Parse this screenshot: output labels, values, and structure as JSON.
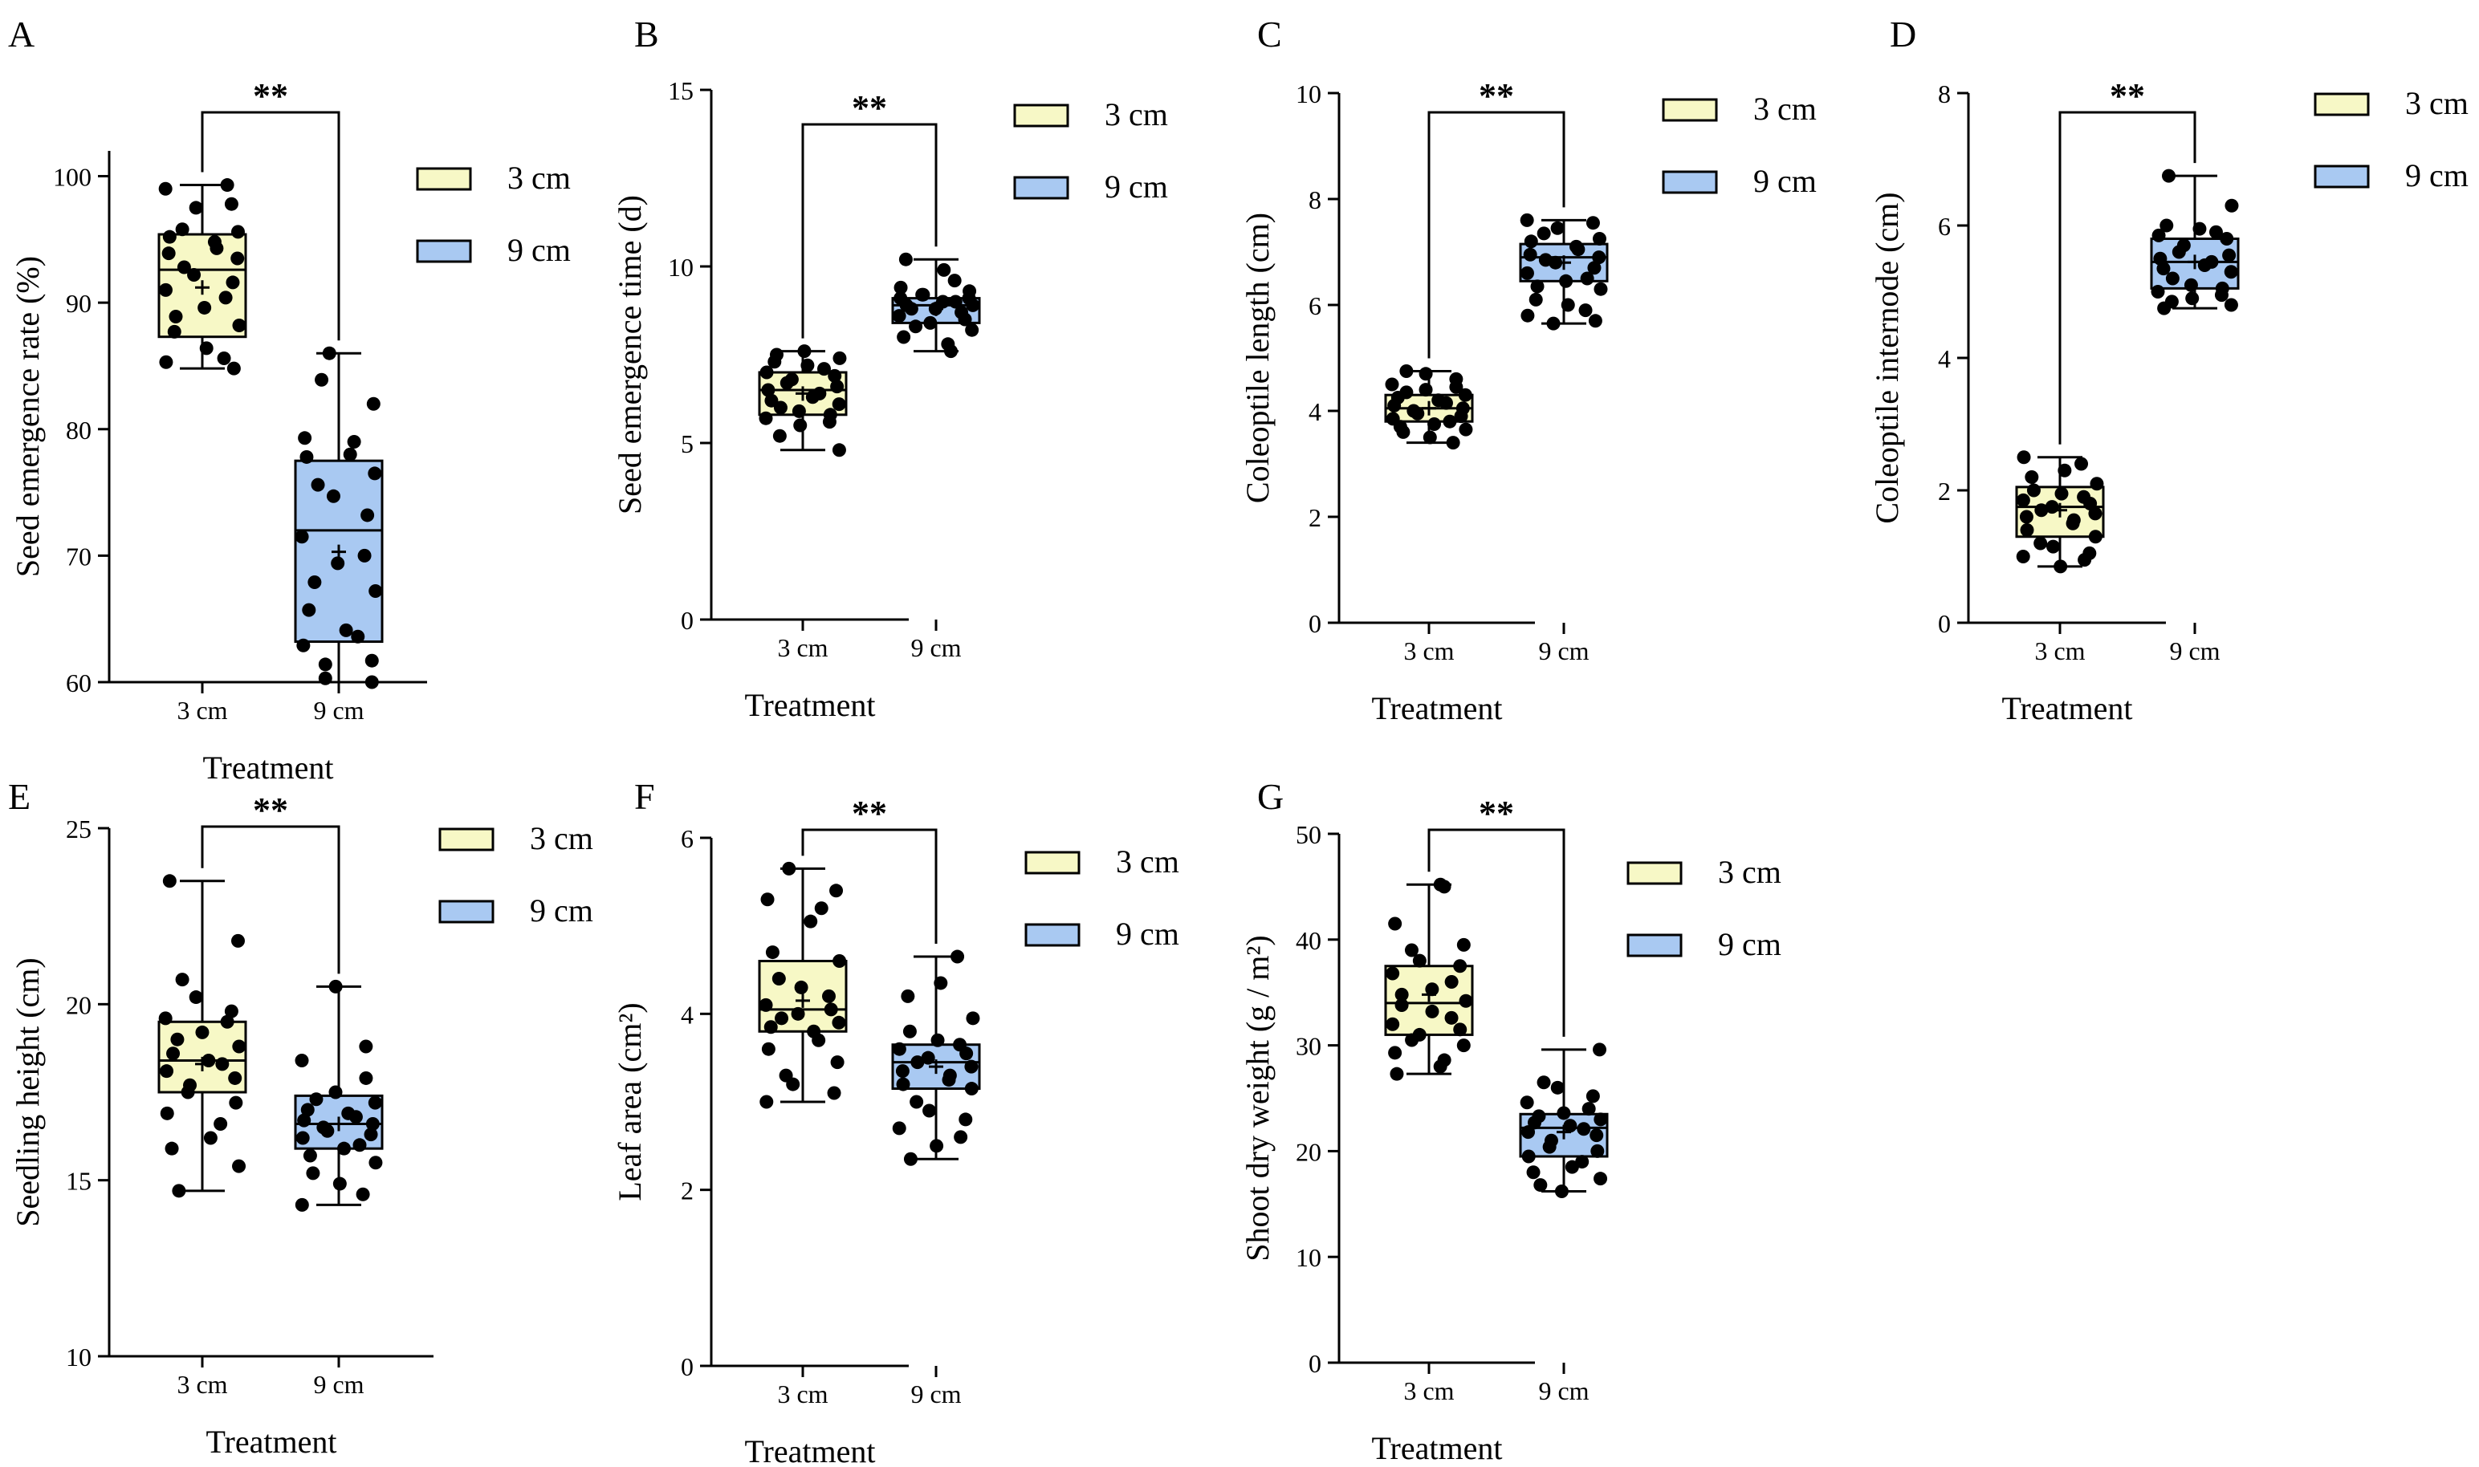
{
  "colors": {
    "3 cm": "#f7f8c6",
    "9 cm": "#a9c9f2",
    "stroke": "#000000",
    "point": "#000000"
  },
  "chart_data": [
    {
      "id": "A",
      "panel_label": "A",
      "type": "box",
      "ylabel": "Seed emergence rate (%)",
      "xlabel": "Treatment",
      "ylim": [
        60,
        102
      ],
      "yticks": [
        "60",
        "70",
        "80",
        "90",
        "100"
      ],
      "categories": [
        "3 cm",
        "9 cm"
      ],
      "legend": [
        "3 cm",
        "9 cm"
      ],
      "legend_position": "right",
      "significance": "**",
      "series": [
        {
          "name": "3 cm",
          "min": 84.8,
          "q1": 87.3,
          "median": 92.6,
          "q3": 95.4,
          "max": 99.3,
          "mean": 91.2,
          "points": [
            99.3,
            99.0,
            97.8,
            97.5,
            95.8,
            95.6,
            95.2,
            94.8,
            94.3,
            93.9,
            93.5,
            92.8,
            92.2,
            91.6,
            91.0,
            90.4,
            89.6,
            88.9,
            88.2,
            87.7,
            86.4,
            85.6,
            85.3,
            84.8
          ]
        },
        {
          "name": "9 cm",
          "min": 60.0,
          "q1": 63.2,
          "median": 72.0,
          "q3": 77.5,
          "max": 86.0,
          "mean": 70.3,
          "points": [
            86.0,
            83.9,
            82.0,
            79.3,
            79.0,
            78.0,
            77.8,
            76.5,
            75.6,
            74.7,
            73.2,
            71.5,
            70.0,
            69.4,
            67.9,
            67.2,
            65.7,
            64.1,
            63.6,
            62.9,
            61.7,
            61.4,
            60.3,
            60.0
          ]
        }
      ]
    },
    {
      "id": "B",
      "panel_label": "B",
      "type": "box",
      "ylabel": "Seed emergence time (d)",
      "xlabel": "Treatment",
      "ylim": [
        0,
        15
      ],
      "yticks": [
        "0",
        "5",
        "10",
        "15"
      ],
      "categories": [
        "3 cm",
        "9 cm"
      ],
      "legend": [
        "3 cm",
        "9 cm"
      ],
      "legend_position": "right",
      "significance": "**",
      "series": [
        {
          "name": "3 cm",
          "min": 4.8,
          "q1": 5.8,
          "median": 6.5,
          "q3": 7.0,
          "max": 7.6,
          "mean": 6.4,
          "points": [
            7.6,
            7.5,
            7.4,
            7.3,
            7.2,
            7.1,
            7.0,
            6.9,
            6.8,
            6.7,
            6.6,
            6.5,
            6.4,
            6.3,
            6.2,
            6.1,
            6.0,
            5.9,
            5.8,
            5.7,
            5.6,
            5.5,
            5.2,
            4.8
          ]
        },
        {
          "name": "9 cm",
          "min": 7.6,
          "q1": 8.4,
          "median": 8.9,
          "q3": 9.1,
          "max": 10.2,
          "mean": 8.8,
          "points": [
            10.2,
            9.9,
            9.6,
            9.4,
            9.3,
            9.2,
            9.2,
            9.1,
            9.1,
            9.0,
            9.0,
            8.9,
            8.9,
            8.8,
            8.8,
            8.7,
            8.6,
            8.5,
            8.4,
            8.3,
            8.2,
            8.0,
            7.8,
            7.6
          ]
        }
      ]
    },
    {
      "id": "C",
      "panel_label": "C",
      "type": "box",
      "ylabel": "Coleoptile length (cm)",
      "xlabel": "Treatment",
      "ylim": [
        0,
        10
      ],
      "yticks": [
        "0",
        "2",
        "4",
        "6",
        "8",
        "10"
      ],
      "categories": [
        "3 cm",
        "9 cm"
      ],
      "legend": [
        "3 cm",
        "9 cm"
      ],
      "legend_position": "right",
      "significance": "**",
      "series": [
        {
          "name": "3 cm",
          "min": 3.4,
          "q1": 3.8,
          "median": 4.05,
          "q3": 4.3,
          "max": 4.75,
          "mean": 4.05,
          "points": [
            4.75,
            4.7,
            4.6,
            4.5,
            4.45,
            4.4,
            4.35,
            4.3,
            4.25,
            4.2,
            4.15,
            4.1,
            4.05,
            4.0,
            3.95,
            3.9,
            3.85,
            3.8,
            3.75,
            3.7,
            3.65,
            3.6,
            3.5,
            3.4
          ]
        },
        {
          "name": "9 cm",
          "min": 5.65,
          "q1": 6.45,
          "median": 6.9,
          "q3": 7.15,
          "max": 7.6,
          "mean": 6.8,
          "points": [
            7.6,
            7.55,
            7.45,
            7.35,
            7.25,
            7.2,
            7.1,
            7.05,
            6.95,
            6.9,
            6.85,
            6.8,
            6.7,
            6.6,
            6.5,
            6.45,
            6.35,
            6.3,
            6.1,
            6.0,
            5.9,
            5.8,
            5.7,
            5.65
          ]
        }
      ]
    },
    {
      "id": "D",
      "panel_label": "D",
      "type": "box",
      "ylabel": "Coleoptile internode (cm)",
      "xlabel": "Treatment",
      "ylim": [
        0,
        8
      ],
      "yticks": [
        "0",
        "2",
        "4",
        "6",
        "8"
      ],
      "categories": [
        "3 cm",
        "9 cm"
      ],
      "legend": [
        "3 cm",
        "9 cm"
      ],
      "legend_position": "right",
      "significance": "**",
      "series": [
        {
          "name": "3 cm",
          "min": 0.85,
          "q1": 1.3,
          "median": 1.75,
          "q3": 2.05,
          "max": 2.5,
          "mean": 1.7,
          "points": [
            2.5,
            2.4,
            2.3,
            2.2,
            2.1,
            2.0,
            1.95,
            1.9,
            1.85,
            1.8,
            1.75,
            1.7,
            1.65,
            1.6,
            1.55,
            1.5,
            1.4,
            1.3,
            1.2,
            1.15,
            1.05,
            1.0,
            0.95,
            0.85
          ]
        },
        {
          "name": "9 cm",
          "min": 4.75,
          "q1": 5.05,
          "median": 5.45,
          "q3": 5.8,
          "max": 6.75,
          "mean": 5.45,
          "points": [
            6.75,
            6.3,
            6.0,
            5.95,
            5.9,
            5.85,
            5.8,
            5.7,
            5.6,
            5.55,
            5.5,
            5.45,
            5.4,
            5.35,
            5.3,
            5.2,
            5.1,
            5.05,
            5.0,
            4.95,
            4.9,
            4.85,
            4.8,
            4.75
          ]
        }
      ]
    },
    {
      "id": "E",
      "panel_label": "E",
      "type": "box",
      "ylabel": "Seedling height (cm)",
      "xlabel": "Treatment",
      "ylim": [
        10,
        25
      ],
      "yticks": [
        "10",
        "15",
        "20",
        "25"
      ],
      "categories": [
        "3 cm",
        "9 cm"
      ],
      "legend": [
        "3 cm",
        "9 cm"
      ],
      "legend_position": "right",
      "significance": "**",
      "series": [
        {
          "name": "3 cm",
          "min": 14.7,
          "q1": 17.5,
          "median": 18.4,
          "q3": 19.5,
          "max": 23.5,
          "mean": 18.3,
          "points": [
            23.5,
            21.8,
            20.7,
            20.2,
            19.8,
            19.6,
            19.5,
            19.2,
            19.0,
            18.8,
            18.6,
            18.4,
            18.3,
            18.1,
            17.9,
            17.7,
            17.5,
            17.2,
            16.9,
            16.6,
            16.2,
            15.9,
            15.4,
            14.7
          ]
        },
        {
          "name": "9 cm",
          "min": 14.3,
          "q1": 15.9,
          "median": 16.6,
          "q3": 17.4,
          "max": 20.5,
          "mean": 16.6,
          "points": [
            20.5,
            18.8,
            18.4,
            17.9,
            17.5,
            17.3,
            17.2,
            17.0,
            16.9,
            16.8,
            16.7,
            16.6,
            16.5,
            16.4,
            16.3,
            16.2,
            16.0,
            15.9,
            15.7,
            15.5,
            15.2,
            14.9,
            14.6,
            14.3
          ]
        }
      ]
    },
    {
      "id": "F",
      "panel_label": "F",
      "type": "box",
      "ylabel": "Leaf area (cm²)",
      "xlabel": "Treatment",
      "ylim": [
        0,
        6
      ],
      "yticks": [
        "0",
        "2",
        "4",
        "6"
      ],
      "categories": [
        "3 cm",
        "9 cm"
      ],
      "legend": [
        "3 cm",
        "9 cm"
      ],
      "legend_position": "right",
      "significance": "**",
      "series": [
        {
          "name": "3 cm",
          "min": 3.0,
          "q1": 3.8,
          "median": 4.05,
          "q3": 4.6,
          "max": 5.65,
          "mean": 4.15,
          "points": [
            5.65,
            5.4,
            5.3,
            5.2,
            5.05,
            4.7,
            4.6,
            4.4,
            4.3,
            4.2,
            4.1,
            4.05,
            4.0,
            3.95,
            3.9,
            3.85,
            3.8,
            3.7,
            3.6,
            3.45,
            3.3,
            3.2,
            3.1,
            3.0
          ]
        },
        {
          "name": "9 cm",
          "min": 2.35,
          "q1": 3.15,
          "median": 3.45,
          "q3": 3.65,
          "max": 4.65,
          "mean": 3.4,
          "points": [
            4.65,
            4.35,
            4.2,
            3.95,
            3.8,
            3.7,
            3.65,
            3.6,
            3.55,
            3.5,
            3.45,
            3.4,
            3.35,
            3.3,
            3.25,
            3.2,
            3.15,
            3.0,
            2.9,
            2.8,
            2.7,
            2.6,
            2.5,
            2.35
          ]
        }
      ]
    },
    {
      "id": "G",
      "panel_label": "G",
      "type": "box",
      "ylabel": "Shoot dry weight (g / m²)",
      "xlabel": "Treatment",
      "ylim": [
        0,
        50
      ],
      "yticks": [
        "0",
        "10",
        "20",
        "30",
        "40",
        "50"
      ],
      "categories": [
        "3 cm",
        "9 cm"
      ],
      "legend": [
        "3 cm",
        "9 cm"
      ],
      "legend_position": "right",
      "significance": "**",
      "series": [
        {
          "name": "3 cm",
          "min": 27.3,
          "q1": 31.0,
          "median": 34.0,
          "q3": 37.5,
          "max": 45.2,
          "mean": 34.8,
          "points": [
            45.2,
            45.0,
            41.5,
            39.5,
            39.0,
            38.0,
            37.5,
            36.8,
            36.0,
            35.3,
            34.8,
            34.2,
            33.8,
            33.2,
            32.6,
            32.0,
            31.5,
            31.0,
            30.5,
            30.0,
            29.3,
            28.6,
            28.0,
            27.3
          ]
        },
        {
          "name": "9 cm",
          "min": 16.2,
          "q1": 19.5,
          "median": 22.2,
          "q3": 23.5,
          "max": 29.6,
          "mean": 21.8,
          "points": [
            29.6,
            26.5,
            26.0,
            25.2,
            24.6,
            24.0,
            23.6,
            23.3,
            23.0,
            22.7,
            22.4,
            22.1,
            21.8,
            21.5,
            21.0,
            20.4,
            20.0,
            19.5,
            19.0,
            18.5,
            18.0,
            17.4,
            16.8,
            16.2
          ]
        }
      ]
    }
  ]
}
